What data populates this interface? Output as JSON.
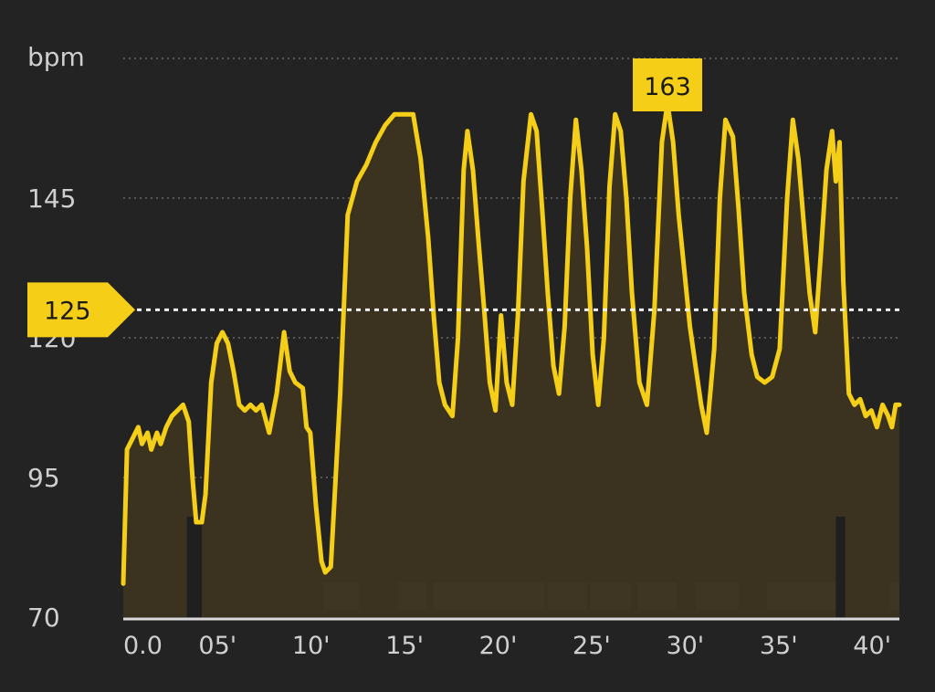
{
  "chart_data": {
    "type": "area",
    "y_unit_label": "bpm",
    "ylim": [
      70,
      170
    ],
    "y_ticks": [
      {
        "value": 70,
        "label": "70"
      },
      {
        "value": 95,
        "label": "95"
      },
      {
        "value": 120,
        "label": "120"
      },
      {
        "value": 145,
        "label": "145"
      }
    ],
    "gridlines": [
      95,
      120,
      145,
      170
    ],
    "xlim": [
      0,
      41.5
    ],
    "x_ticks": [
      {
        "value": 0,
        "label": "0.0"
      },
      {
        "value": 5,
        "label": "05'"
      },
      {
        "value": 10,
        "label": "10'"
      },
      {
        "value": 15,
        "label": "15'"
      },
      {
        "value": 20,
        "label": "20'"
      },
      {
        "value": 25,
        "label": "25'"
      },
      {
        "value": 30,
        "label": "30'"
      },
      {
        "value": 35,
        "label": "35'"
      },
      {
        "value": 40,
        "label": "40'"
      }
    ],
    "line_color": "#f5cf17",
    "fill_color": "#3d3520",
    "reference_line": {
      "value": 125,
      "label": "125"
    },
    "max_marker": {
      "value": 163,
      "label": "163"
    },
    "series": [
      {
        "points": [
          [
            0.0,
            76
          ],
          [
            0.2,
            100
          ],
          [
            0.5,
            102
          ],
          [
            0.8,
            104
          ],
          [
            1.0,
            101
          ],
          [
            1.3,
            103
          ],
          [
            1.5,
            100
          ],
          [
            1.8,
            103
          ],
          [
            2.0,
            101
          ],
          [
            2.3,
            104
          ],
          [
            2.6,
            106
          ],
          [
            2.9,
            107
          ],
          [
            3.2,
            108
          ],
          [
            3.5,
            105
          ],
          [
            3.7,
            95
          ],
          [
            3.9,
            87
          ],
          [
            4.2,
            87
          ],
          [
            4.4,
            92
          ],
          [
            4.7,
            112
          ],
          [
            5.0,
            119
          ],
          [
            5.3,
            121
          ],
          [
            5.6,
            119
          ],
          [
            5.9,
            114
          ],
          [
            6.2,
            108
          ],
          [
            6.5,
            107
          ],
          [
            6.8,
            108
          ],
          [
            7.1,
            107
          ],
          [
            7.4,
            108
          ],
          [
            7.8,
            103
          ],
          [
            8.2,
            110
          ],
          [
            8.6,
            121
          ],
          [
            8.9,
            114
          ],
          [
            9.2,
            112
          ],
          [
            9.6,
            111
          ],
          [
            9.8,
            104
          ],
          [
            10.0,
            103
          ],
          [
            10.3,
            90
          ],
          [
            10.6,
            80
          ],
          [
            10.8,
            78
          ],
          [
            11.1,
            79
          ],
          [
            11.6,
            110
          ],
          [
            12.0,
            142
          ],
          [
            12.5,
            148
          ],
          [
            13.0,
            151
          ],
          [
            13.5,
            155
          ],
          [
            14.0,
            158
          ],
          [
            14.5,
            160
          ],
          [
            15.0,
            160
          ],
          [
            15.5,
            160
          ],
          [
            15.9,
            152
          ],
          [
            16.3,
            138
          ],
          [
            16.6,
            124
          ],
          [
            16.9,
            112
          ],
          [
            17.2,
            108
          ],
          [
            17.6,
            106
          ],
          [
            17.9,
            120
          ],
          [
            18.2,
            150
          ],
          [
            18.4,
            157
          ],
          [
            18.7,
            150
          ],
          [
            19.0,
            137
          ],
          [
            19.3,
            125
          ],
          [
            19.6,
            112
          ],
          [
            19.9,
            107
          ],
          [
            20.2,
            124
          ],
          [
            20.5,
            112
          ],
          [
            20.8,
            108
          ],
          [
            21.1,
            124
          ],
          [
            21.4,
            148
          ],
          [
            21.8,
            160
          ],
          [
            22.1,
            157
          ],
          [
            22.4,
            143
          ],
          [
            22.7,
            128
          ],
          [
            23.0,
            115
          ],
          [
            23.3,
            110
          ],
          [
            23.6,
            122
          ],
          [
            23.9,
            145
          ],
          [
            24.2,
            159
          ],
          [
            24.5,
            150
          ],
          [
            24.8,
            136
          ],
          [
            25.1,
            117
          ],
          [
            25.4,
            108
          ],
          [
            25.7,
            120
          ],
          [
            26.0,
            147
          ],
          [
            26.3,
            160
          ],
          [
            26.6,
            157
          ],
          [
            26.9,
            145
          ],
          [
            27.2,
            128
          ],
          [
            27.6,
            112
          ],
          [
            28.0,
            108
          ],
          [
            28.4,
            125
          ],
          [
            28.8,
            155
          ],
          [
            29.1,
            162
          ],
          [
            29.4,
            155
          ],
          [
            29.7,
            142
          ],
          [
            30.0,
            132
          ],
          [
            30.3,
            122
          ],
          [
            30.6,
            115
          ],
          [
            30.9,
            108
          ],
          [
            31.2,
            103
          ],
          [
            31.6,
            118
          ],
          [
            31.9,
            145
          ],
          [
            32.2,
            159
          ],
          [
            32.6,
            156
          ],
          [
            32.9,
            143
          ],
          [
            33.2,
            128
          ],
          [
            33.6,
            117
          ],
          [
            33.9,
            113
          ],
          [
            34.3,
            112
          ],
          [
            34.7,
            113
          ],
          [
            35.1,
            118
          ],
          [
            35.5,
            145
          ],
          [
            35.8,
            159
          ],
          [
            36.1,
            152
          ],
          [
            36.4,
            140
          ],
          [
            36.7,
            128
          ],
          [
            37.0,
            121
          ],
          [
            37.3,
            135
          ],
          [
            37.6,
            150
          ],
          [
            37.9,
            157
          ],
          [
            38.1,
            148
          ],
          [
            38.3,
            155
          ],
          [
            38.5,
            130
          ],
          [
            38.8,
            110
          ],
          [
            39.1,
            108
          ],
          [
            39.4,
            109
          ],
          [
            39.7,
            106
          ],
          [
            40.0,
            107
          ],
          [
            40.3,
            104
          ],
          [
            40.6,
            108
          ],
          [
            40.9,
            106
          ],
          [
            41.1,
            104
          ],
          [
            41.3,
            108
          ],
          [
            41.5,
            108
          ]
        ]
      }
    ],
    "gaps": [
      [
        3.4,
        4.2
      ],
      [
        38.1,
        38.6
      ]
    ],
    "pause_markers": [
      [
        10.7,
        12.6
      ],
      [
        14.7,
        16.2
      ],
      [
        16.6,
        22.5
      ],
      [
        22.7,
        24.8
      ],
      [
        25.0,
        27.1
      ],
      [
        27.5,
        29.6
      ],
      [
        30.6,
        32.9
      ],
      [
        34.4,
        38.5
      ],
      [
        41.0,
        41.5
      ]
    ]
  }
}
